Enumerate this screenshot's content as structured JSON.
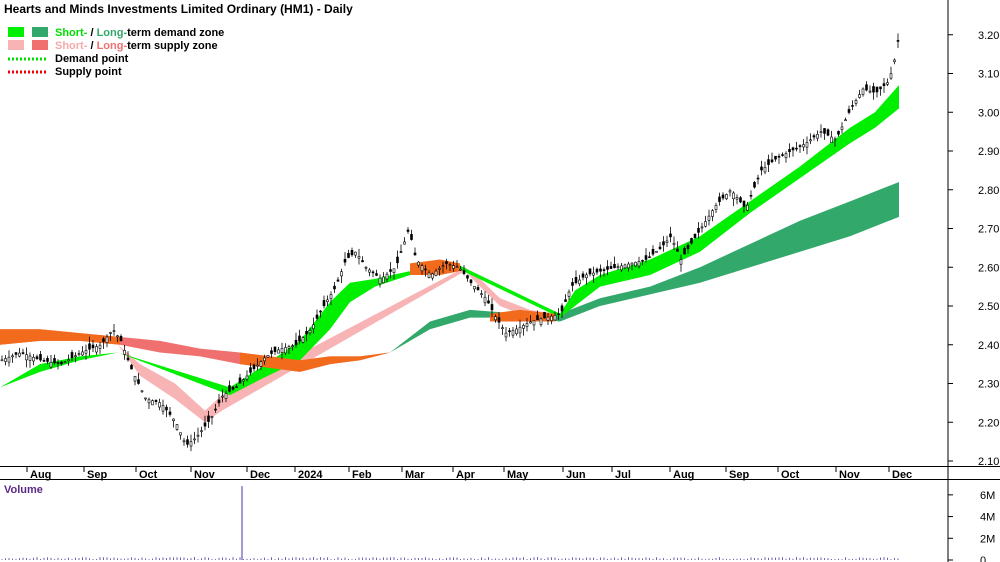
{
  "chart_data": {
    "type": "candlestick",
    "title": "Hearts and Minds Investments Limited Ordinary (HM1) - Daily",
    "legend": {
      "placement": "top-left",
      "entries": [
        {
          "name": "demand-zone",
          "parts": [
            {
              "text": "Short-",
              "color": "#00dd00"
            },
            {
              "text": " / ",
              "color": "#000000"
            },
            {
              "text": "Long-",
              "color": "#33a86b"
            },
            {
              "text": "term demand zone",
              "color": "#000000"
            }
          ],
          "swatches": [
            "#00ee00",
            "#33a86b"
          ]
        },
        {
          "name": "supply-zone",
          "parts": [
            {
              "text": "Short-",
              "color": "#f4aaaa"
            },
            {
              "text": " / ",
              "color": "#000000"
            },
            {
              "text": "Long-",
              "color": "#f07070"
            },
            {
              "text": "term supply zone",
              "color": "#000000"
            }
          ],
          "swatches": [
            "#f8b4b4",
            "#f07070"
          ]
        },
        {
          "name": "demand-point",
          "parts": [
            {
              "text": "Demand point",
              "color": "#000000"
            }
          ],
          "dotted": "#00dd00"
        },
        {
          "name": "supply-point",
          "parts": [
            {
              "text": "Supply point",
              "color": "#000000"
            }
          ],
          "dotted": "#ee0000"
        }
      ]
    },
    "y_axis": {
      "ticks": [
        "2.10",
        "2.20",
        "2.30",
        "2.40",
        "2.50",
        "2.60",
        "2.70",
        "2.80",
        "2.90",
        "3.00",
        "3.10",
        "3.20"
      ],
      "range": [
        2.085,
        3.27
      ]
    },
    "x_axis": {
      "labels": [
        "Aug",
        "Sep",
        "Oct",
        "Nov",
        "Dec",
        "2024",
        "Feb",
        "Mar",
        "Apr",
        "May",
        "Jun",
        "Jul",
        "Aug",
        "Sep",
        "Oct",
        "Nov",
        "Dec"
      ]
    },
    "price_path": [
      [
        0,
        2.36
      ],
      [
        20,
        2.38
      ],
      [
        40,
        2.36
      ],
      [
        60,
        2.35
      ],
      [
        80,
        2.38
      ],
      [
        100,
        2.4
      ],
      [
        112,
        2.44
      ],
      [
        120,
        2.41
      ],
      [
        130,
        2.34
      ],
      [
        145,
        2.26
      ],
      [
        160,
        2.25
      ],
      [
        175,
        2.2
      ],
      [
        185,
        2.14
      ],
      [
        195,
        2.16
      ],
      [
        210,
        2.21
      ],
      [
        222,
        2.27
      ],
      [
        235,
        2.29
      ],
      [
        250,
        2.33
      ],
      [
        265,
        2.37
      ],
      [
        280,
        2.39
      ],
      [
        295,
        2.4
      ],
      [
        310,
        2.44
      ],
      [
        325,
        2.51
      ],
      [
        335,
        2.55
      ],
      [
        345,
        2.62
      ],
      [
        355,
        2.64
      ],
      [
        365,
        2.6
      ],
      [
        380,
        2.57
      ],
      [
        395,
        2.6
      ],
      [
        408,
        2.7
      ],
      [
        415,
        2.62
      ],
      [
        430,
        2.58
      ],
      [
        445,
        2.61
      ],
      [
        458,
        2.6
      ],
      [
        470,
        2.56
      ],
      [
        485,
        2.52
      ],
      [
        495,
        2.47
      ],
      [
        505,
        2.43
      ],
      [
        515,
        2.44
      ],
      [
        530,
        2.46
      ],
      [
        545,
        2.47
      ],
      [
        560,
        2.48
      ],
      [
        570,
        2.55
      ],
      [
        585,
        2.58
      ],
      [
        600,
        2.59
      ],
      [
        615,
        2.6
      ],
      [
        630,
        2.61
      ],
      [
        645,
        2.62
      ],
      [
        660,
        2.65
      ],
      [
        670,
        2.68
      ],
      [
        680,
        2.62
      ],
      [
        690,
        2.66
      ],
      [
        700,
        2.7
      ],
      [
        715,
        2.76
      ],
      [
        730,
        2.8
      ],
      [
        745,
        2.75
      ],
      [
        760,
        2.85
      ],
      [
        775,
        2.88
      ],
      [
        790,
        2.9
      ],
      [
        805,
        2.92
      ],
      [
        820,
        2.95
      ],
      [
        835,
        2.93
      ],
      [
        850,
        3.01
      ],
      [
        862,
        3.06
      ],
      [
        875,
        3.05
      ],
      [
        888,
        3.08
      ],
      [
        895,
        3.15
      ],
      [
        899,
        3.22
      ]
    ],
    "short_term_demand_zone": [
      [
        0,
        2.29,
        2.29
      ],
      [
        40,
        2.33,
        2.35
      ],
      [
        80,
        2.36,
        2.37
      ],
      [
        118,
        2.38,
        2.38
      ],
      [
        230,
        2.27,
        2.29
      ],
      [
        260,
        2.31,
        2.34
      ],
      [
        300,
        2.36,
        2.41
      ],
      [
        330,
        2.44,
        2.51
      ],
      [
        350,
        2.51,
        2.56
      ],
      [
        375,
        2.55,
        2.57
      ],
      [
        410,
        2.58,
        2.59
      ],
      [
        455,
        2.6,
        2.61
      ],
      [
        560,
        2.47,
        2.48
      ],
      [
        575,
        2.5,
        2.54
      ],
      [
        600,
        2.55,
        2.58
      ],
      [
        650,
        2.58,
        2.62
      ],
      [
        700,
        2.64,
        2.68
      ],
      [
        750,
        2.74,
        2.77
      ],
      [
        800,
        2.83,
        2.86
      ],
      [
        850,
        2.92,
        2.96
      ],
      [
        875,
        2.96,
        3.0
      ],
      [
        899,
        3.01,
        3.07
      ]
    ],
    "short_term_supply_zone": [
      [
        118,
        2.4,
        2.4
      ],
      [
        140,
        2.32,
        2.35
      ],
      [
        175,
        2.26,
        2.3
      ],
      [
        205,
        2.2,
        2.23
      ],
      [
        222,
        2.23,
        2.27
      ],
      [
        465,
        2.59,
        2.6
      ],
      [
        480,
        2.55,
        2.57
      ],
      [
        500,
        2.5,
        2.52
      ],
      [
        530,
        2.47,
        2.49
      ],
      [
        555,
        2.47,
        2.48
      ]
    ],
    "long_term_demand_zone": [
      [
        390,
        2.38,
        2.38
      ],
      [
        430,
        2.44,
        2.46
      ],
      [
        470,
        2.47,
        2.49
      ],
      [
        520,
        2.47,
        2.48
      ],
      [
        560,
        2.46,
        2.48
      ],
      [
        600,
        2.5,
        2.52
      ],
      [
        650,
        2.53,
        2.55
      ],
      [
        700,
        2.56,
        2.6
      ],
      [
        750,
        2.6,
        2.66
      ],
      [
        800,
        2.64,
        2.72
      ],
      [
        850,
        2.68,
        2.77
      ],
      [
        899,
        2.73,
        2.82
      ]
    ],
    "long_term_supply_zone": [
      [
        0,
        2.4,
        2.44
      ],
      [
        40,
        2.41,
        2.44
      ],
      [
        80,
        2.41,
        2.43
      ],
      [
        120,
        2.4,
        2.42
      ],
      [
        160,
        2.38,
        2.41
      ],
      [
        200,
        2.37,
        2.39
      ],
      [
        240,
        2.35,
        2.38
      ],
      [
        270,
        2.34,
        2.37
      ],
      [
        300,
        2.33,
        2.36
      ],
      [
        330,
        2.35,
        2.37
      ],
      [
        360,
        2.36,
        2.37
      ],
      [
        390,
        2.38,
        2.38
      ]
    ],
    "volume": {
      "label": "Volume",
      "ticks": [
        "0",
        "2M",
        "4M",
        "6M"
      ],
      "range": [
        0,
        7
      ],
      "spike": {
        "x_index": 242,
        "value": 6.8
      },
      "baseline": 0.25
    }
  }
}
